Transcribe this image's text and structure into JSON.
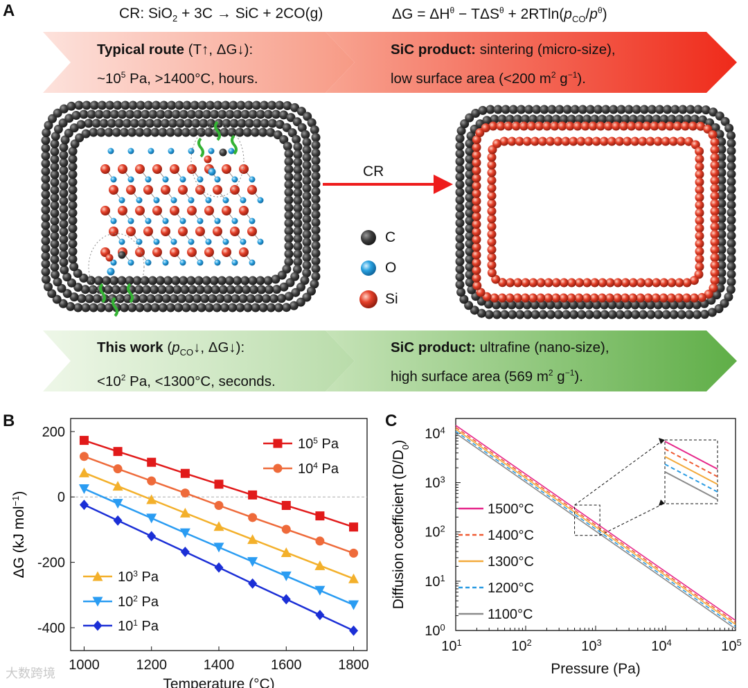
{
  "panel_a": {
    "label": "A",
    "equation_cr": {
      "prefix": "CR: SiO",
      "sub1": "2",
      "mid": " + 3C → SiC + 2CO(g)"
    },
    "equation_dg": {
      "prefix": "ΔG = ΔH",
      "sup1": "θ",
      "mid1": " − TΔS",
      "sup2": "θ",
      "mid2": " + 2RTln(",
      "p1": "p",
      "sub_co": "CO",
      "slash": "/",
      "p2": "p",
      "sup3": "θ",
      "end": ")"
    },
    "typical_route": {
      "bold": "Typical route",
      "cond": " (T↑, ΔG↓):",
      "line2_pre": "~10",
      "line2_sup": "5",
      "line2_post": " Pa, >1400°C, hours."
    },
    "sic_product_top": {
      "bold": "SiC product:",
      "line1": " sintering (micro-size),",
      "line2_pre": "low surface area (<200 m",
      "line2_sup1": "2",
      "line2_mid": " g",
      "line2_sup2": "−1",
      "line2_post": ")."
    },
    "this_work": {
      "bold": "This work",
      "cond_pre": " (",
      "cond_p": "p",
      "cond_sub": "CO",
      "cond_post": "↓, ΔG↓):",
      "line2_pre": "<10",
      "line2_sup": "2",
      "line2_post": " Pa, <1300°C, seconds."
    },
    "sic_product_bottom": {
      "bold": "SiC product:",
      "line1": " ultrafine (nano-size),",
      "line2_pre": "high surface area (569 m",
      "line2_sup1": "2",
      "line2_mid": " g",
      "line2_sup2": "−1",
      "line2_post": ")."
    },
    "arrow_label": "CR",
    "atom_legend": [
      {
        "symbol": "C",
        "color": "#3a3a3a"
      },
      {
        "symbol": "O",
        "color": "#2b9fd8"
      },
      {
        "symbol": "Si",
        "color": "#e0402a"
      }
    ]
  },
  "panel_b": {
    "label": "B",
    "chart_data": {
      "type": "line",
      "xlabel": "Temperature (°C)",
      "ylabel_pre": "ΔG (kJ mol",
      "ylabel_sup": "−1",
      "ylabel_post": ")",
      "xlim": [
        960,
        1840
      ],
      "ylim": [
        -470,
        240
      ],
      "xticks": [
        1000,
        1200,
        1400,
        1600,
        1800
      ],
      "xtick_labels": [
        "1000",
        "1200",
        "1400",
        "1600",
        "1800"
      ],
      "yticks": [
        200,
        0,
        -200,
        -400
      ],
      "ytick_labels": [
        "200",
        "0",
        "-200",
        "-400"
      ],
      "x": [
        1000,
        1100,
        1200,
        1300,
        1400,
        1500,
        1600,
        1700,
        1800
      ],
      "series": [
        {
          "name_pre": "10",
          "name_sup": "5",
          "name_post": " Pa",
          "color": "#e11a1a",
          "marker": "square",
          "values": [
            173,
            139,
            106,
            72,
            39,
            6,
            -26,
            -58,
            -92
          ]
        },
        {
          "name_pre": "10",
          "name_sup": "4",
          "name_post": " Pa",
          "color": "#ee6a3a",
          "marker": "circle",
          "values": [
            124,
            86,
            49,
            12,
            -26,
            -63,
            -99,
            -135,
            -172
          ]
        },
        {
          "name_pre": "10",
          "name_sup": "3",
          "name_post": " Pa",
          "color": "#f3b02b",
          "marker": "triangle-up",
          "values": [
            74,
            33,
            -8,
            -49,
            -90,
            -130,
            -170,
            -210,
            -250
          ]
        },
        {
          "name_pre": "10",
          "name_sup": "2",
          "name_post": " Pa",
          "color": "#2a9cf2",
          "marker": "triangle-down",
          "values": [
            25,
            -20,
            -65,
            -110,
            -154,
            -198,
            -242,
            -286,
            -330
          ]
        },
        {
          "name_pre": "10",
          "name_sup": "1",
          "name_post": " Pa",
          "color": "#1b2fd6",
          "marker": "diamond",
          "values": [
            -24,
            -72,
            -120,
            -168,
            -216,
            -265,
            -313,
            -361,
            -409
          ]
        }
      ]
    }
  },
  "panel_c": {
    "label": "C",
    "chart_data": {
      "type": "line",
      "scale": "log-log",
      "xlabel": "Pressure (Pa)",
      "ylabel_pre": "Diffusion coefficient (D/D",
      "ylabel_sub": "0",
      "ylabel_post": ")",
      "xlim": [
        10,
        100000
      ],
      "ylim": [
        1,
        20000
      ],
      "xtick_exps": [
        "1",
        "2",
        "3",
        "4",
        "5"
      ],
      "ytick_exps": [
        "0",
        "1",
        "2",
        "3",
        "4"
      ],
      "tick_base": "10",
      "series": [
        {
          "name": "1500°C",
          "color": "#e6268a",
          "dash": "solid",
          "at_10Pa": 14500,
          "at_1e5Pa": 1.6
        },
        {
          "name": "1400°C",
          "color": "#ef5a32",
          "dash": "dashed",
          "at_10Pa": 13200,
          "at_1e5Pa": 1.45
        },
        {
          "name": "1300°C",
          "color": "#f3a93a",
          "dash": "solid",
          "at_10Pa": 12100,
          "at_1e5Pa": 1.33
        },
        {
          "name": "1200°C",
          "color": "#2a9be2",
          "dash": "dashed",
          "at_10Pa": 11000,
          "at_1e5Pa": 1.2
        },
        {
          "name": "1100°C",
          "color": "#8a8a8a",
          "dash": "solid",
          "at_10Pa": 10000,
          "at_1e5Pa": 1.08
        }
      ]
    }
  },
  "watermark": "大数跨境"
}
